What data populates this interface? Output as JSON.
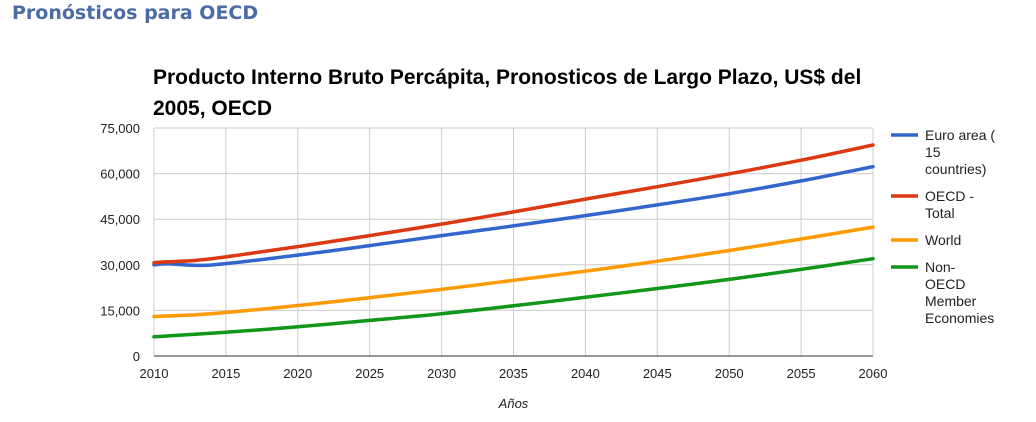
{
  "page": {
    "heading": "Pronósticos para OECD"
  },
  "chart_data": {
    "type": "line",
    "title": "Producto Interno Bruto Percápita, Pronosticos de Largo Plazo, US$ del 2005, OECD",
    "xlabel": "Años",
    "ylabel": "",
    "xlim": [
      2010,
      2060
    ],
    "ylim": [
      0,
      75000
    ],
    "xticks": [
      "2010",
      "2015",
      "2020",
      "2025",
      "2030",
      "2035",
      "2040",
      "2045",
      "2050",
      "2055",
      "2060"
    ],
    "yticks": [
      "0",
      "15,000",
      "30,000",
      "45,000",
      "60,000",
      "75,000"
    ],
    "grid": true,
    "legend_position": "right",
    "x": [
      2010,
      2011,
      2013,
      2015,
      2020,
      2025,
      2030,
      2035,
      2040,
      2045,
      2050,
      2055,
      2060
    ],
    "series": [
      {
        "name": "Euro area ( 15 countries)",
        "legend_lines": [
          "Euro area (",
          "15",
          "countries)"
        ],
        "color": "#3366cc",
        "values": [
          30000,
          30300,
          29800,
          30400,
          33200,
          36300,
          39600,
          42800,
          46200,
          49700,
          53400,
          57600,
          62300
        ]
      },
      {
        "name": "OECD - Total",
        "legend_lines": [
          "OECD -",
          "Total"
        ],
        "color": "#dc3912",
        "values": [
          30700,
          31000,
          31500,
          32600,
          36000,
          39600,
          43400,
          47400,
          51600,
          55700,
          59900,
          64400,
          69400
        ]
      },
      {
        "name": "World",
        "legend_lines": [
          "World"
        ],
        "color": "#ff9900",
        "values": [
          13000,
          13200,
          13600,
          14300,
          16600,
          19200,
          21900,
          24900,
          27900,
          31200,
          34700,
          38500,
          42400
        ]
      },
      {
        "name": "Non-OECD Member Economies",
        "legend_lines": [
          "Non-",
          "OECD",
          "Member",
          "Economies"
        ],
        "color": "#109618",
        "values": [
          6300,
          6600,
          7200,
          7800,
          9600,
          11700,
          13900,
          16500,
          19300,
          22200,
          25200,
          28500,
          32000
        ]
      }
    ]
  }
}
